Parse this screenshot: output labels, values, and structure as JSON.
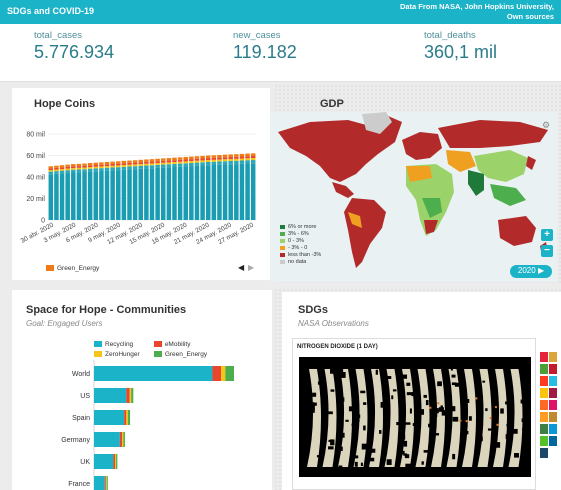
{
  "header": {
    "title": "SDGs and COVID-19",
    "source_line1": "Data From NASA, John Hopkins University,",
    "source_line2": "Own sources"
  },
  "kpis": [
    {
      "label": "total_cases",
      "value": "5.776.934"
    },
    {
      "label": "new_cases",
      "value": "119.182"
    },
    {
      "label": "total_deaths",
      "value": "360,1 mil"
    }
  ],
  "hope_coins": {
    "title": "Hope Coins",
    "legend_label": "Green_Energy",
    "nav_left": "◀",
    "nav_right": "▶",
    "chart_data": {
      "type": "bar",
      "stacked": true,
      "ylim": [
        0,
        80
      ],
      "ytick_labels": [
        "0",
        "20 mil",
        "40 mil",
        "60 mil",
        "80 mil"
      ],
      "ytick_values": [
        0,
        20,
        40,
        60,
        80
      ],
      "xtick_labels": [
        "30 abr. 2020",
        "3 may. 2020",
        "6 may. 2020",
        "9 may. 2020",
        "12 may. 2020",
        "15 may. 2020",
        "18 may. 2020",
        "21 may. 2020",
        "24 may. 2020",
        "27 may. 2020"
      ],
      "series_colors": [
        "#1a9db3",
        "#2ea8b8",
        "#f5c518",
        "#e8462d",
        "#f07b16"
      ],
      "totals": [
        50,
        50.5,
        51,
        51.5,
        52,
        52.2,
        52.5,
        53,
        53.3,
        53.6,
        54,
        54.3,
        54.6,
        55,
        55.3,
        55.6,
        56,
        56.3,
        56.6,
        57,
        57.3,
        57.6,
        58,
        58.3,
        58.6,
        59,
        59.3,
        59.6,
        60,
        60.2,
        60.5,
        60.8,
        61,
        61.2,
        61.5,
        61.8,
        62
      ],
      "base_share": 0.85,
      "grid": true
    }
  },
  "gdp": {
    "title": "GDP",
    "legend": [
      {
        "label": "6% or more",
        "color": "#1f7a3a"
      },
      {
        "label": "3% - 6%",
        "color": "#4cae4c"
      },
      {
        "label": "0 - 3%",
        "color": "#9bd36a"
      },
      {
        "label": "- 3% - 0",
        "color": "#f0a020"
      },
      {
        "label": "less than -3%",
        "color": "#b22a2a"
      },
      {
        "label": "no data",
        "color": "#cccccc"
      }
    ],
    "zoom_in": "+",
    "zoom_out": "−",
    "year": "2020",
    "play": "▶",
    "settings": "⚙"
  },
  "communities": {
    "title": "Space for Hope - Communities",
    "subtitle": "Goal: Engaged Users",
    "legend": [
      {
        "label": "Recycling",
        "color": "#1ab3c8"
      },
      {
        "label": "eMobility",
        "color": "#e8462d"
      },
      {
        "label": "ZeroHunger",
        "color": "#f5c518"
      },
      {
        "label": "Green_Energy",
        "color": "#4cae4c"
      }
    ],
    "chart_data": {
      "type": "bar",
      "orientation": "horizontal",
      "stacked": true,
      "categories": [
        "World",
        "US",
        "Spain",
        "Germany",
        "UK",
        "France"
      ],
      "series": [
        {
          "name": "Recycling",
          "values": [
            110,
            30,
            28,
            24,
            18,
            10
          ]
        },
        {
          "name": "eMobility",
          "values": [
            8,
            3,
            2,
            2,
            1.5,
            1
          ]
        },
        {
          "name": "ZeroHunger",
          "values": [
            4,
            1.5,
            1.5,
            1.2,
            1,
            0.8
          ]
        },
        {
          "name": "Green_Energy",
          "values": [
            8,
            2,
            2,
            1.5,
            1.2,
            1
          ]
        }
      ]
    }
  },
  "sdgs": {
    "title": "SDGs",
    "subtitle": "NASA Observations",
    "image_title": "NITROGEN DIOXIDE (1 DAY)",
    "icon_colors": [
      "#e5243b",
      "#dda63a",
      "#4c9f38",
      "#c5192d",
      "#ff3a21",
      "#26bde2",
      "#fcc30b",
      "#a21942",
      "#fd6925",
      "#dd1367",
      "#fd9d24",
      "#bf8b2e",
      "#3f7e44",
      "#0a97d9",
      "#56c02b",
      "#00689d",
      "#19486a"
    ]
  }
}
